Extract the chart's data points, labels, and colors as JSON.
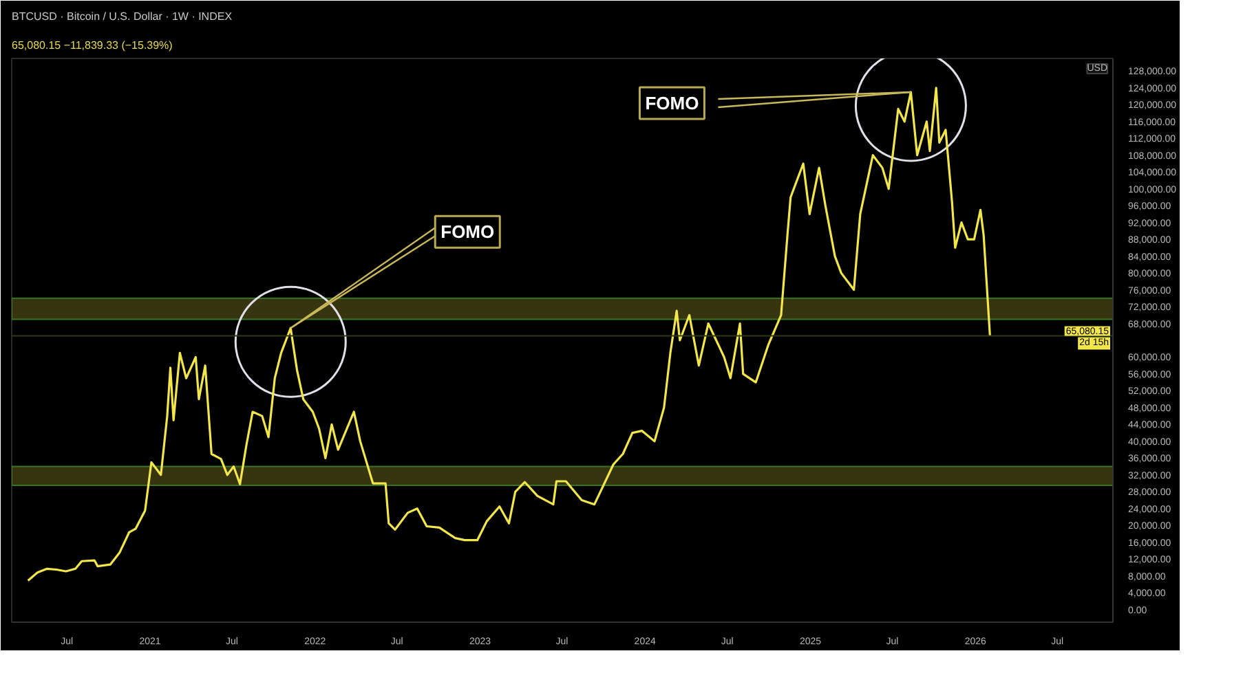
{
  "chart_data": {
    "type": "line",
    "title": "BTCUSD · Bitcoin / U.S. Dollar · 1W · INDEX",
    "subtitle": "65,080.15 −11,839.33 (−15.39%)",
    "ylabel": "USD",
    "x": [
      "2020-04-06",
      "2020-04-27",
      "2020-05-18",
      "2020-06-08",
      "2020-06-29",
      "2020-07-20",
      "2020-08-03",
      "2020-08-31",
      "2020-09-07",
      "2020-10-05",
      "2020-10-26",
      "2020-11-16",
      "2020-11-30",
      "2020-12-21",
      "2021-01-04",
      "2021-01-25",
      "2021-02-08",
      "2021-02-15",
      "2021-02-22",
      "2021-03-08",
      "2021-03-22",
      "2021-04-12",
      "2021-04-19",
      "2021-05-03",
      "2021-05-17",
      "2021-06-07",
      "2021-06-21",
      "2021-07-05",
      "2021-07-19",
      "2021-08-02",
      "2021-08-16",
      "2021-09-06",
      "2021-09-20",
      "2021-10-04",
      "2021-10-18",
      "2021-11-08",
      "2021-11-22",
      "2021-12-06",
      "2021-12-27",
      "2022-01-10",
      "2022-01-24",
      "2022-02-07",
      "2022-02-21",
      "2022-03-28",
      "2022-04-11",
      "2022-05-09",
      "2022-06-06",
      "2022-06-13",
      "2022-06-27",
      "2022-07-25",
      "2022-08-15",
      "2022-09-05",
      "2022-10-03",
      "2022-11-07",
      "2022-11-28",
      "2022-12-26",
      "2023-01-16",
      "2023-02-13",
      "2023-03-06",
      "2023-03-20",
      "2023-04-10",
      "2023-05-08",
      "2023-06-12",
      "2023-06-19",
      "2023-07-10",
      "2023-08-14",
      "2023-09-11",
      "2023-10-23",
      "2023-11-13",
      "2023-12-04",
      "2023-12-25",
      "2024-01-22",
      "2024-02-12",
      "2024-02-26",
      "2024-03-11",
      "2024-03-18",
      "2024-04-08",
      "2024-04-29",
      "2024-05-20",
      "2024-06-24",
      "2024-07-08",
      "2024-07-29",
      "2024-08-05",
      "2024-09-02",
      "2024-09-30",
      "2024-10-28",
      "2024-11-11",
      "2024-11-18",
      "2024-12-16",
      "2024-12-30",
      "2025-01-20",
      "2025-02-03",
      "2025-02-24",
      "2025-03-10",
      "2025-04-07",
      "2025-04-21",
      "2025-05-19",
      "2025-06-09",
      "2025-06-23",
      "2025-07-14",
      "2025-07-28",
      "2025-08-11",
      "2025-08-25",
      "2025-09-15",
      "2025-09-22",
      "2025-10-06",
      "2025-10-13",
      "2025-10-27",
      "2025-11-10",
      "2025-11-17",
      "2025-12-01",
      "2025-12-15",
      "2025-12-29",
      "2026-01-12",
      "2026-01-19",
      "2026-02-02"
    ],
    "series": [
      {
        "color": "#f2e64b",
        "values": [
          6900,
          8800,
          9700,
          9500,
          9100,
          9700,
          11500,
          11700,
          10300,
          10700,
          13600,
          18400,
          19200,
          23500,
          35000,
          32000,
          46000,
          57500,
          45000,
          61000,
          55000,
          60000,
          50000,
          58000,
          37000,
          35800,
          32000,
          34000,
          29800,
          39000,
          47000,
          46000,
          41000,
          55000,
          61000,
          66900,
          57000,
          50000,
          47000,
          43000,
          36000,
          44000,
          38000,
          47000,
          40000,
          30000,
          30000,
          20500,
          19000,
          23000,
          24000,
          19800,
          19500,
          17000,
          16500,
          16500,
          21000,
          24500,
          20500,
          28000,
          30300,
          27000,
          25000,
          30500,
          30500,
          26000,
          25000,
          34500,
          37000,
          42000,
          42500,
          40000,
          48000,
          61000,
          71000,
          64000,
          70000,
          58000,
          68000,
          60000,
          55000,
          68000,
          56000,
          54000,
          63000,
          70000,
          89000,
          98000,
          106000,
          94000,
          105000,
          96000,
          84000,
          80000,
          76000,
          94000,
          108000,
          105000,
          100000,
          119000,
          116000,
          123000,
          108000,
          116000,
          109000,
          124000,
          111000,
          114000,
          97000,
          86000,
          92000,
          88000,
          88000,
          95000,
          89000,
          65080
        ]
      }
    ],
    "xlim": [
      "2020-03-01",
      "2026-11-01"
    ],
    "xticks": [
      {
        "value": "2020-07-01",
        "label": "Jul"
      },
      {
        "value": "2021-01-01",
        "label": "2021"
      },
      {
        "value": "2021-07-01",
        "label": "Jul"
      },
      {
        "value": "2022-01-01",
        "label": "2022"
      },
      {
        "value": "2022-07-01",
        "label": "Jul"
      },
      {
        "value": "2023-01-01",
        "label": "2023"
      },
      {
        "value": "2023-07-01",
        "label": "Jul"
      },
      {
        "value": "2024-01-01",
        "label": "2024"
      },
      {
        "value": "2024-07-01",
        "label": "Jul"
      },
      {
        "value": "2025-01-01",
        "label": "2025"
      },
      {
        "value": "2025-07-01",
        "label": "Jul"
      },
      {
        "value": "2026-01-01",
        "label": "2026"
      },
      {
        "value": "2026-07-01",
        "label": "Jul"
      }
    ],
    "ylim": [
      -3000,
      131000
    ],
    "yticks": [
      {
        "value": 0,
        "label": "0.00"
      },
      {
        "value": 4000,
        "label": "4,000.00"
      },
      {
        "value": 8000,
        "label": "8,000.00"
      },
      {
        "value": 12000,
        "label": "12,000.00"
      },
      {
        "value": 16000,
        "label": "16,000.00"
      },
      {
        "value": 20000,
        "label": "20,000.00"
      },
      {
        "value": 24000,
        "label": "24,000.00"
      },
      {
        "value": 28000,
        "label": "28,000.00"
      },
      {
        "value": 32000,
        "label": "32,000.00"
      },
      {
        "value": 36000,
        "label": "36,000.00"
      },
      {
        "value": 40000,
        "label": "40,000.00"
      },
      {
        "value": 44000,
        "label": "44,000.00"
      },
      {
        "value": 48000,
        "label": "48,000.00"
      },
      {
        "value": 52000,
        "label": "52,000.00"
      },
      {
        "value": 56000,
        "label": "56,000.00"
      },
      {
        "value": 60000,
        "label": "60,000.00"
      },
      {
        "value": 68000,
        "label": "68,000.00"
      },
      {
        "value": 72000,
        "label": "72,000.00"
      },
      {
        "value": 76000,
        "label": "76,000.00"
      },
      {
        "value": 80000,
        "label": "80,000.00"
      },
      {
        "value": 84000,
        "label": "84,000.00"
      },
      {
        "value": 88000,
        "label": "88,000.00"
      },
      {
        "value": 92000,
        "label": "92,000.00"
      },
      {
        "value": 96000,
        "label": "96,000.00"
      },
      {
        "value": 100000,
        "label": "100,000.00"
      },
      {
        "value": 104000,
        "label": "104,000.00"
      },
      {
        "value": 108000,
        "label": "108,000.00"
      },
      {
        "value": 112000,
        "label": "112,000.00"
      },
      {
        "value": 116000,
        "label": "116,000.00"
      },
      {
        "value": 120000,
        "label": "120,000.00"
      },
      {
        "value": 124000,
        "label": "124,000.00"
      },
      {
        "value": 128000,
        "label": "128,000.00"
      }
    ],
    "bands": [
      {
        "axis": "y",
        "from": 29500,
        "to": 34000,
        "color": "#3d3a12"
      },
      {
        "axis": "y",
        "from": 69000,
        "to": 74000,
        "color": "#3d3a12"
      }
    ],
    "ref_lines": [
      {
        "axis": "y",
        "value": 65080.15,
        "label": "65,080.15",
        "color": "#2e3a16"
      }
    ],
    "annotations": [
      {
        "text": "FOMO",
        "x": "2021-11-08",
        "y": 66900
      },
      {
        "text": "FOMO",
        "x": "2025-08-11",
        "y": 123000
      },
      "2d 15h"
    ],
    "grid": false
  }
}
